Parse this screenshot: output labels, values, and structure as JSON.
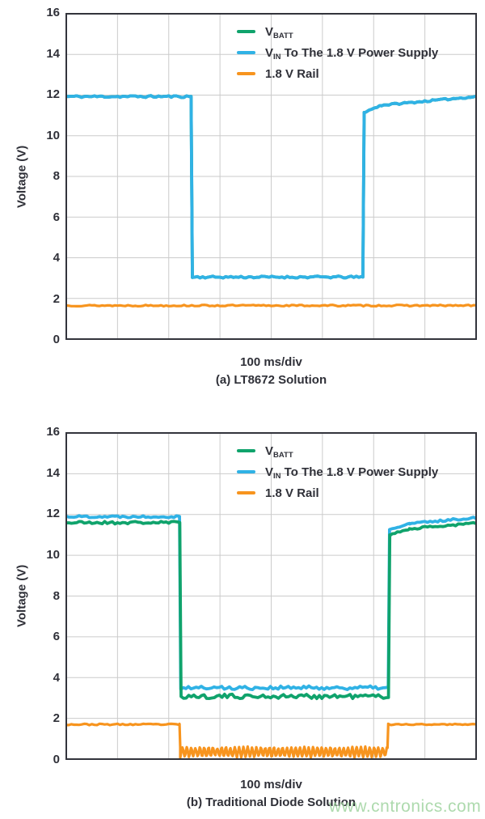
{
  "watermark": {
    "text": "www.cntronics.com",
    "color": "#a0d4a0"
  },
  "colors": {
    "axis": "#33343c",
    "grid": "#cbcbcb",
    "text": "#2f3038",
    "green": "#10a36c",
    "blue": "#30b2e5",
    "orange": "#f7941e"
  },
  "charts": [
    {
      "ylabel": "Voltage (V)",
      "x_caption": "100 ms/div",
      "title_caption": "(a) LT8672 Solution"
    },
    {
      "ylabel": "Voltage (V)",
      "x_caption": "100 ms/div",
      "title_caption": "(b) Traditional Diode Solution"
    }
  ],
  "legend": {
    "items": [
      {
        "series": "vbatt",
        "color_key": "green",
        "parts": [
          {
            "text": "V"
          },
          {
            "sub": "BATT"
          }
        ]
      },
      {
        "series": "vin",
        "color_key": "blue",
        "parts": [
          {
            "text": "V"
          },
          {
            "sub": "IN"
          },
          {
            "text": " To The 1.8 V Power Supply"
          }
        ]
      },
      {
        "series": "rail",
        "color_key": "orange",
        "parts": [
          {
            "text": "1.8 V Rail"
          }
        ]
      }
    ]
  },
  "chart_data": [
    {
      "type": "line",
      "title": "(a) LT8672 Solution",
      "xlabel": "100 ms/div",
      "ylabel": "Voltage (V)",
      "ylim": [
        0,
        16
      ],
      "ytick_step": 2,
      "x_divisions": 8,
      "x_div_unit_ms": 100,
      "grid": true,
      "legend_position": "top-right",
      "events": {
        "dropout_start_div": 2.44,
        "dropout_end_div": 5.79,
        "v_high": 11.93,
        "v_dropout": 3.05,
        "rail_v": 1.65
      },
      "series": [
        {
          "name": "V_BATT",
          "color_key": "green",
          "width": 3.8,
          "seed": 11,
          "segments": [
            [
              0,
              2.437,
              11.93,
              11.93,
              0.05
            ],
            [
              2.437,
              2.462,
              11.93,
              3.05,
              0
            ],
            [
              2.462,
              5.79,
              3.05,
              3.05,
              0.05
            ],
            [
              5.79,
              5.815,
              3.05,
              11.15,
              0
            ],
            [
              5.815,
              6.15,
              11.15,
              11.5,
              0.035
            ],
            [
              6.15,
              8,
              11.5,
              11.93,
              0.04
            ]
          ]
        },
        {
          "name": "V_IN To The 1.8 V Power Supply",
          "color_key": "blue",
          "width": 3.8,
          "seed": 11,
          "segments": [
            [
              0,
              2.437,
              11.93,
              11.93,
              0.05
            ],
            [
              2.437,
              2.462,
              11.93,
              3.05,
              0
            ],
            [
              2.462,
              5.79,
              3.05,
              3.05,
              0.05
            ],
            [
              5.79,
              5.815,
              3.05,
              11.15,
              0
            ],
            [
              5.815,
              6.15,
              11.15,
              11.5,
              0.035
            ],
            [
              6.15,
              8,
              11.5,
              11.93,
              0.04
            ]
          ]
        },
        {
          "name": "1.8 V Rail",
          "color_key": "orange",
          "width": 3.2,
          "seed": 13,
          "segments": [
            [
              0,
              8,
              1.65,
              1.65,
              0.035
            ]
          ]
        }
      ]
    },
    {
      "type": "line",
      "title": "(b) Traditional Diode Solution",
      "xlabel": "100 ms/div",
      "ylabel": "Voltage (V)",
      "ylim": [
        0,
        16
      ],
      "ytick_step": 2,
      "x_divisions": 8,
      "x_div_unit_ms": 100,
      "grid": true,
      "legend_position": "top-right",
      "events": {
        "dropout_start_div": 2.22,
        "dropout_end_div": 6.29,
        "v_batt_high": 11.6,
        "v_in_high": 11.9,
        "v_batt_dropout": 3.08,
        "v_in_dropout": 3.5,
        "rail_v": 1.7,
        "rail_dropout_range": [
          0.1,
          0.6
        ]
      },
      "series": [
        {
          "name": "V_IN To The 1.8 V Power Supply",
          "color_key": "blue",
          "width": 3.8,
          "seed": 22,
          "segments": [
            [
              0,
              2.21,
              11.9,
              11.9,
              0.055
            ],
            [
              2.21,
              2.235,
              11.9,
              3.5,
              0
            ],
            [
              2.235,
              6.285,
              3.5,
              3.5,
              0.09
            ],
            [
              6.285,
              6.31,
              3.5,
              11.25,
              0
            ],
            [
              6.31,
              6.7,
              11.25,
              11.55,
              0.04
            ],
            [
              6.7,
              8,
              11.55,
              11.85,
              0.05
            ]
          ]
        },
        {
          "name": "V_BATT",
          "color_key": "green",
          "width": 3.8,
          "seed": 21,
          "segments": [
            [
              0,
              2.215,
              11.6,
              11.6,
              0.07
            ],
            [
              2.215,
              2.24,
              11.6,
              3.08,
              0
            ],
            [
              2.24,
              6.29,
              3.08,
              3.08,
              0.11
            ],
            [
              6.29,
              6.315,
              3.08,
              11.0,
              0
            ],
            [
              6.315,
              6.7,
              11.0,
              11.3,
              0.04
            ],
            [
              6.7,
              8,
              11.3,
              11.58,
              0.05
            ]
          ]
        },
        {
          "name": "1.8 V Rail",
          "color_key": "orange",
          "width": 3.2,
          "seed": 23,
          "segments": [
            [
              0,
              2.21,
              1.7,
              1.7,
              0.035
            ],
            [
              2.21,
              2.225,
              1.7,
              0.55,
              0
            ],
            [
              2.225,
              6.27,
              0.1,
              0.6,
              0.04,
              "saw"
            ],
            [
              6.27,
              6.285,
              0.55,
              1.7,
              0
            ],
            [
              6.285,
              8,
              1.7,
              1.7,
              0.035
            ]
          ]
        }
      ]
    }
  ]
}
